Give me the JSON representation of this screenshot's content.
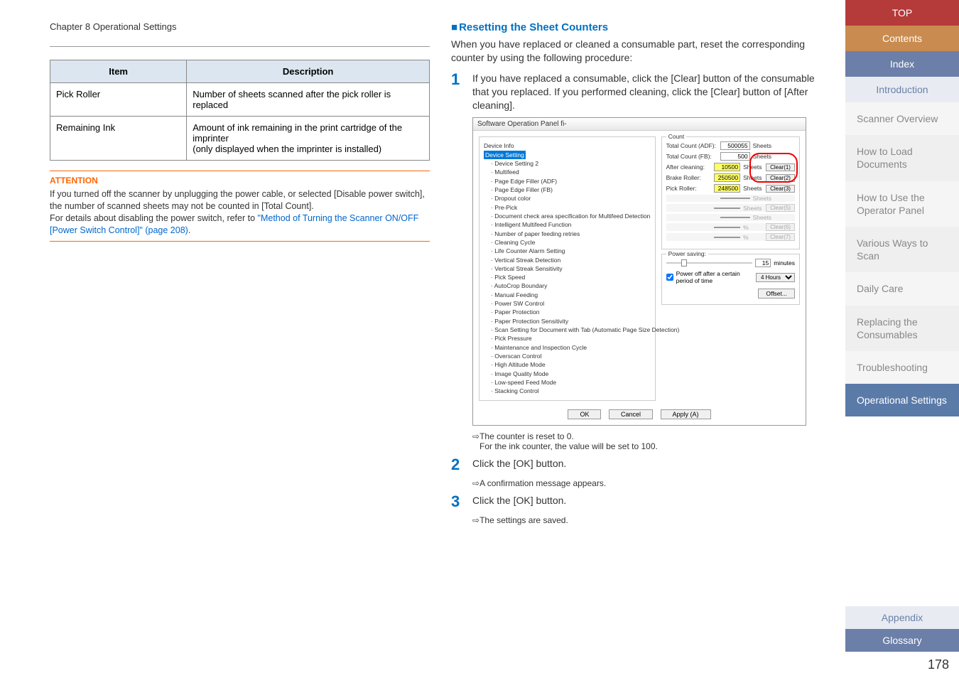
{
  "chapter": "Chapter 8 Operational Settings",
  "table": {
    "headers": [
      "Item",
      "Description"
    ],
    "rows": [
      [
        "Pick Roller",
        "Number of sheets scanned after the pick roller is replaced"
      ],
      [
        "Remaining Ink",
        "Amount of ink remaining in the print cartridge of the imprinter\n(only displayed when the imprinter is installed)"
      ]
    ]
  },
  "attention": {
    "title": "ATTENTION",
    "body": "If you turned off the scanner by unplugging the power cable, or selected [Disable power switch], the number of scanned sheets may not be counted in [Total Count].\nFor details about disabling the power switch, refer to ",
    "link": "\"Method of Turning the Scanner ON/OFF [Power Switch Control]\" (page 208)",
    "after": "."
  },
  "right": {
    "heading": "Resetting the Sheet Counters",
    "intro": "When you have replaced or cleaned a consumable part, reset the corresponding counter by using the following procedure:",
    "steps": [
      {
        "num": "1",
        "text": "If you have replaced a consumable, click the [Clear] button of the consumable that you replaced. If you performed cleaning, click the [Clear] button of [After cleaning]."
      },
      {
        "num": "2",
        "text": "Click the [OK] button."
      },
      {
        "num": "3",
        "text": "Click the [OK] button."
      }
    ],
    "sub1a": "The counter is reset to 0.",
    "sub1b": "For the ink counter, the value will be set to 100.",
    "sub2": "A confirmation message appears.",
    "sub3": "The settings are saved."
  },
  "screenshot": {
    "title": "Software Operation Panel fi-",
    "tree_root": "Device Info",
    "tree_sel": "Device Setting",
    "tree": [
      "Device Setting 2",
      "Multifeed",
      "Page Edge Filler (ADF)",
      "Page Edge Filler (FB)",
      "Dropout color",
      "Pre-Pick",
      "Document check area specification for Multifeed Detection",
      "Intelligent Multifeed Function",
      "Number of paper feeding retries",
      "Cleaning Cycle",
      "Life Counter Alarm Setting",
      "Vertical Streak Detection",
      "Vertical Streak Sensitivity",
      "Pick Speed",
      "AutoCrop Boundary",
      "Manual Feeding",
      "Power SW Control",
      "Paper Protection",
      "Paper Protection Sensitivity",
      "Scan Setting for Document with Tab (Automatic Page Size Detection)",
      "Pick Pressure",
      "Maintenance and Inspection Cycle",
      "Overscan Control",
      "High Altitude Mode",
      "Image Quality Mode",
      "Low-speed Feed Mode",
      "Stacking Control"
    ],
    "count_legend": "Count",
    "rows": [
      {
        "lbl": "Total Count (ADF):",
        "val": "500055",
        "unit": "Sheets",
        "btn": "",
        "yellow": false,
        "grey": false
      },
      {
        "lbl": "Total Count (FB):",
        "val": "500",
        "unit": "Sheets",
        "btn": "",
        "yellow": false,
        "grey": false
      },
      {
        "lbl": "After cleaning:",
        "val": "10500",
        "unit": "Sheets",
        "btn": "Clear(1)",
        "yellow": true,
        "grey": false
      },
      {
        "lbl": "Brake Roller:",
        "val": "250500",
        "unit": "Sheets",
        "btn": "Clear(2)",
        "yellow": true,
        "grey": false
      },
      {
        "lbl": "Pick Roller:",
        "val": "248500",
        "unit": "Sheets",
        "btn": "Clear(3)",
        "yellow": true,
        "grey": false
      },
      {
        "lbl": "",
        "val": "",
        "unit": "Sheets",
        "btn": "",
        "yellow": false,
        "grey": true
      },
      {
        "lbl": "",
        "val": "",
        "unit": "Sheets",
        "btn": "Clear(5)",
        "yellow": false,
        "grey": true
      },
      {
        "lbl": "",
        "val": "",
        "unit": "Sheets",
        "btn": "",
        "yellow": false,
        "grey": true
      },
      {
        "lbl": "",
        "val": "",
        "unit": "%",
        "btn": "Clear(6)",
        "yellow": false,
        "grey": true
      },
      {
        "lbl": "",
        "val": "",
        "unit": "%",
        "btn": "Clear(7)",
        "yellow": false,
        "grey": true
      }
    ],
    "power_legend": "Power saving:",
    "minutes": "15",
    "minutes_lbl": "minutes",
    "chk": "Power off after a certain period of time",
    "hours": "4 Hours",
    "offset": "Offset...",
    "buttons": [
      "OK",
      "Cancel",
      "Apply (A)"
    ]
  },
  "sidebar": {
    "top": "TOP",
    "contents": "Contents",
    "index": "Index",
    "intro": "Introduction",
    "items": [
      "Scanner Overview",
      "How to Load Documents",
      "How to Use the Operator Panel",
      "Various Ways to Scan",
      "Daily Care",
      "Replacing the Consumables",
      "Troubleshooting",
      "Operational Settings"
    ],
    "appendix": "Appendix",
    "glossary": "Glossary",
    "page": "178"
  }
}
